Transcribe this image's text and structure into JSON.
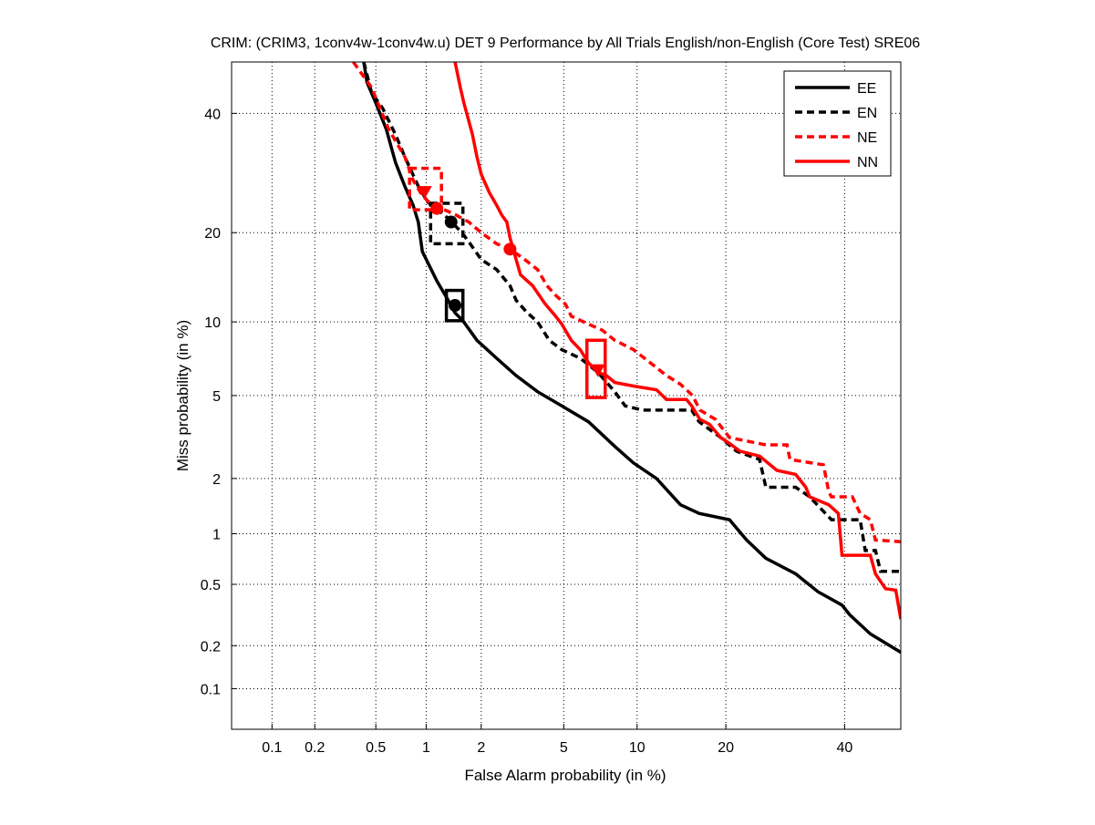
{
  "chart_data": {
    "type": "line",
    "title": "CRIM: (CRIM3, 1conv4w-1conv4w.u) DET 9 Performance by All Trials English/non-English (Core Test) SRE06",
    "xlabel": "False Alarm probability (in %)",
    "ylabel": "Miss probability (in %)",
    "scale": "normal-deviate (probit)",
    "xlim": [
      0.05,
      51
    ],
    "ylim": [
      0.05,
      50
    ],
    "xticks": [
      0.1,
      0.2,
      0.5,
      1,
      2,
      5,
      10,
      20,
      40
    ],
    "xtick_labels": [
      "0.1",
      "0.2",
      "0.5",
      "1",
      "2",
      "5",
      "10",
      "20",
      "40"
    ],
    "yticks": [
      0.1,
      0.2,
      0.5,
      1,
      2,
      5,
      10,
      20,
      40
    ],
    "ytick_labels": [
      "0.1",
      "0.2",
      "0.5",
      "1",
      "2",
      "5",
      "10",
      "20",
      "40"
    ],
    "grid": true,
    "legend_position": "top-right",
    "series": [
      {
        "name": "EE",
        "color": "#000000",
        "dash": false,
        "x": [
          0.42,
          0.44,
          0.5,
          0.58,
          0.66,
          0.75,
          0.84,
          0.9,
          0.95,
          1.15,
          1.33,
          1.45,
          1.6,
          1.9,
          2.4,
          3.0,
          3.8,
          4.9,
          6.4,
          8.2,
          9.7,
          11.8,
          14.3,
          16.5,
          20.5,
          23,
          26,
          31,
          35,
          39.5,
          41,
          45,
          51
        ],
        "y": [
          50,
          46,
          42,
          37,
          31,
          27,
          24,
          21.5,
          17.5,
          14,
          12,
          10.8,
          10.1,
          8.5,
          7.2,
          6.1,
          5.2,
          4.5,
          3.8,
          2.9,
          2.4,
          2.0,
          1.45,
          1.3,
          1.2,
          0.92,
          0.72,
          0.58,
          0.45,
          0.37,
          0.32,
          0.24,
          0.18
        ],
        "marker": {
          "type": "circle",
          "x": 1.45,
          "y": 11.5
        },
        "box": {
          "x": [
            1.3,
            1.6
          ],
          "y": [
            10.1,
            13
          ]
        }
      },
      {
        "name": "EN",
        "color": "#000000",
        "dash": true,
        "x": [
          0.42,
          0.47,
          0.55,
          0.66,
          0.75,
          0.9,
          1.02,
          1.15,
          1.33,
          1.58,
          1.75,
          2.0,
          2.4,
          2.8,
          3.0,
          3.4,
          3.8,
          4.3,
          4.9,
          5.9,
          7.0,
          8.2,
          9.0,
          10.5,
          15.6,
          16.5,
          19.3,
          21.5,
          25,
          26,
          31,
          33.5,
          37.5,
          43,
          44,
          46,
          47,
          51
        ],
        "y": [
          50,
          44,
          41,
          36,
          32,
          27,
          24.5,
          23.5,
          22,
          20,
          18.5,
          16.5,
          15.3,
          13.5,
          12,
          10.8,
          10,
          8.5,
          7.8,
          7.2,
          6.3,
          5.2,
          4.5,
          4.3,
          4.3,
          3.8,
          3.2,
          2.75,
          2.5,
          1.8,
          1.8,
          1.6,
          1.2,
          1.2,
          0.8,
          0.8,
          0.6,
          0.6
        ],
        "marker": {
          "type": "circle",
          "x": 1.38,
          "y": 21.5
        },
        "box": {
          "x": [
            1.06,
            1.6
          ],
          "y": [
            18.5,
            24.3
          ]
        }
      },
      {
        "name": "NE",
        "color": "#ff0000",
        "dash": true,
        "x": [
          0.36,
          0.47,
          0.6,
          0.75,
          0.84,
          0.95,
          1.08,
          1.22,
          1.45,
          1.72,
          2.0,
          2.4,
          2.8,
          3.3,
          3.8,
          4.2,
          4.6,
          5.1,
          5.4,
          6.1,
          7.3,
          8.2,
          9.7,
          11.2,
          12.8,
          14.3,
          15.7,
          16.6,
          18.6,
          20.5,
          26,
          29.5,
          30,
          36,
          37,
          37.5,
          41.5,
          43,
          45,
          46,
          51
        ],
        "y": [
          50,
          45,
          37,
          32,
          28,
          25.5,
          24,
          23.5,
          22.6,
          21.5,
          20,
          18.5,
          17.8,
          16.5,
          15.3,
          13.5,
          12.5,
          11.6,
          10.5,
          10,
          9.3,
          8.5,
          7.8,
          6.9,
          6.1,
          5.6,
          5.0,
          4.3,
          3.9,
          3.2,
          2.95,
          2.95,
          2.5,
          2.35,
          1.7,
          1.6,
          1.6,
          1.3,
          1.2,
          0.92,
          0.9
        ],
        "marker": {
          "type": "triangle",
          "x": 0.98,
          "y": 26
        },
        "marker2": {
          "type": "circle",
          "x": 1.15,
          "y": 23.5
        },
        "box": {
          "x": [
            0.8,
            1.22
          ],
          "y": [
            23.3,
            30
          ]
        }
      },
      {
        "name": "NN",
        "color": "#ff0000",
        "dash": false,
        "x": [
          1.45,
          1.55,
          1.62,
          1.8,
          1.9,
          2.0,
          2.2,
          2.4,
          2.55,
          2.7,
          2.8,
          3.0,
          3.15,
          3.6,
          4.1,
          4.6,
          4.9,
          5.4,
          5.9,
          6.4,
          7.0,
          7.6,
          8.2,
          9.7,
          11.8,
          12.8,
          15,
          15.6,
          16.6,
          17.8,
          19.3,
          20.5,
          22,
          25,
          27.8,
          31,
          32.8,
          33.5,
          37,
          38.8,
          39.5,
          45,
          46,
          48,
          50,
          51
        ],
        "y": [
          50,
          45,
          42,
          36,
          32,
          29,
          26,
          24,
          22.5,
          21.5,
          19.3,
          16.5,
          14.7,
          13.5,
          11.7,
          10.5,
          9.8,
          8.5,
          7.8,
          6.9,
          6.3,
          6.1,
          5.7,
          5.5,
          5.3,
          4.8,
          4.8,
          4.5,
          3.9,
          3.7,
          3.2,
          3.0,
          2.75,
          2.6,
          2.2,
          2.1,
          1.8,
          1.6,
          1.45,
          1.3,
          0.75,
          0.75,
          0.58,
          0.47,
          0.46,
          0.3
        ],
        "marker": {
          "type": "triangle",
          "x": 7.0,
          "y": 6.4
        },
        "marker2": {
          "type": "circle",
          "x": 2.8,
          "y": 17.8
        },
        "box": {
          "x": [
            6.3,
            7.5
          ],
          "y": [
            4.9,
            8.5
          ]
        }
      }
    ]
  }
}
